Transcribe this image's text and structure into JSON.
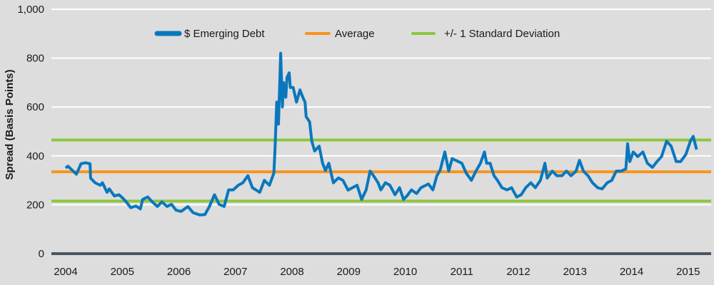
{
  "chart_data": {
    "type": "line",
    "title": "",
    "xlabel": "",
    "ylabel": "Spread (Basis Points)",
    "ylim": [
      0,
      1000
    ],
    "yticks": [
      0,
      200,
      400,
      600,
      800,
      1000
    ],
    "ytick_labels": [
      "0",
      "200",
      "400",
      "600",
      "800",
      "1,000"
    ],
    "xticks": [
      2004,
      2005,
      2006,
      2007,
      2008,
      2009,
      2010,
      2011,
      2012,
      2013,
      2014,
      2015
    ],
    "xtick_labels": [
      "2004",
      "2005",
      "2006",
      "2007",
      "2008",
      "2009",
      "2010",
      "2011",
      "2012",
      "2013",
      "2014",
      "2015"
    ],
    "xlim": [
      2003.75,
      2015.42
    ],
    "grid": true,
    "legend_position": "top-center",
    "series": [
      {
        "name": "$ Emerging Debt",
        "color": "#0a77bd",
        "points": [
          [
            2004.0,
            350
          ],
          [
            2004.04,
            358
          ],
          [
            2004.1,
            345
          ],
          [
            2004.19,
            325
          ],
          [
            2004.27,
            368
          ],
          [
            2004.35,
            372
          ],
          [
            2004.43,
            368
          ],
          [
            2004.44,
            309
          ],
          [
            2004.52,
            290
          ],
          [
            2004.61,
            280
          ],
          [
            2004.65,
            290
          ],
          [
            2004.73,
            251
          ],
          [
            2004.77,
            265
          ],
          [
            2004.86,
            236
          ],
          [
            2004.94,
            241
          ],
          [
            2005.01,
            227
          ],
          [
            2005.07,
            212
          ],
          [
            2005.15,
            188
          ],
          [
            2005.24,
            195
          ],
          [
            2005.32,
            183
          ],
          [
            2005.36,
            222
          ],
          [
            2005.45,
            232
          ],
          [
            2005.53,
            212
          ],
          [
            2005.62,
            193
          ],
          [
            2005.7,
            212
          ],
          [
            2005.79,
            193
          ],
          [
            2005.87,
            202
          ],
          [
            2005.95,
            178
          ],
          [
            2006.04,
            173
          ],
          [
            2006.16,
            193
          ],
          [
            2006.25,
            168
          ],
          [
            2006.37,
            158
          ],
          [
            2006.46,
            160
          ],
          [
            2006.54,
            193
          ],
          [
            2006.63,
            241
          ],
          [
            2006.71,
            202
          ],
          [
            2006.8,
            193
          ],
          [
            2006.88,
            261
          ],
          [
            2006.96,
            261
          ],
          [
            2007.05,
            280
          ],
          [
            2007.13,
            290
          ],
          [
            2007.22,
            319
          ],
          [
            2007.3,
            270
          ],
          [
            2007.43,
            251
          ],
          [
            2007.51,
            300
          ],
          [
            2007.6,
            280
          ],
          [
            2007.68,
            330
          ],
          [
            2007.7,
            430
          ],
          [
            2007.73,
            620
          ],
          [
            2007.76,
            530
          ],
          [
            2007.8,
            820
          ],
          [
            2007.83,
            600
          ],
          [
            2007.85,
            700
          ],
          [
            2007.89,
            640
          ],
          [
            2007.91,
            720
          ],
          [
            2007.95,
            740
          ],
          [
            2007.97,
            680
          ],
          [
            2008.02,
            680
          ],
          [
            2008.08,
            620
          ],
          [
            2008.14,
            670
          ],
          [
            2008.19,
            640
          ],
          [
            2008.23,
            620
          ],
          [
            2008.25,
            560
          ],
          [
            2008.31,
            540
          ],
          [
            2008.35,
            460
          ],
          [
            2008.4,
            420
          ],
          [
            2008.48,
            440
          ],
          [
            2008.54,
            370
          ],
          [
            2008.59,
            340
          ],
          [
            2008.65,
            370
          ],
          [
            2008.73,
            290
          ],
          [
            2008.82,
            310
          ],
          [
            2008.9,
            300
          ],
          [
            2008.99,
            260
          ],
          [
            2009.15,
            280
          ],
          [
            2009.23,
            222
          ],
          [
            2009.31,
            261
          ],
          [
            2009.38,
            338
          ],
          [
            2009.44,
            319
          ],
          [
            2009.52,
            290
          ],
          [
            2009.57,
            261
          ],
          [
            2009.65,
            290
          ],
          [
            2009.73,
            280
          ],
          [
            2009.82,
            241
          ],
          [
            2009.9,
            270
          ],
          [
            2009.97,
            222
          ],
          [
            2010.03,
            236
          ],
          [
            2010.11,
            261
          ],
          [
            2010.2,
            246
          ],
          [
            2010.28,
            270
          ],
          [
            2010.41,
            285
          ],
          [
            2010.49,
            261
          ],
          [
            2010.56,
            319
          ],
          [
            2010.62,
            343
          ],
          [
            2010.7,
            416
          ],
          [
            2010.77,
            338
          ],
          [
            2010.83,
            389
          ],
          [
            2010.91,
            380
          ],
          [
            2011.0,
            370
          ],
          [
            2011.08,
            329
          ],
          [
            2011.17,
            300
          ],
          [
            2011.25,
            338
          ],
          [
            2011.33,
            370
          ],
          [
            2011.4,
            416
          ],
          [
            2011.44,
            370
          ],
          [
            2011.5,
            370
          ],
          [
            2011.57,
            319
          ],
          [
            2011.63,
            300
          ],
          [
            2011.71,
            270
          ],
          [
            2011.8,
            261
          ],
          [
            2011.88,
            270
          ],
          [
            2011.97,
            232
          ],
          [
            2012.05,
            241
          ],
          [
            2012.13,
            270
          ],
          [
            2012.22,
            290
          ],
          [
            2012.3,
            270
          ],
          [
            2012.39,
            300
          ],
          [
            2012.47,
            370
          ],
          [
            2012.51,
            309
          ],
          [
            2012.6,
            338
          ],
          [
            2012.68,
            319
          ],
          [
            2012.77,
            319
          ],
          [
            2012.85,
            338
          ],
          [
            2012.93,
            319
          ],
          [
            2013.02,
            338
          ],
          [
            2013.08,
            382
          ],
          [
            2013.15,
            338
          ],
          [
            2013.23,
            319
          ],
          [
            2013.31,
            290
          ],
          [
            2013.4,
            270
          ],
          [
            2013.48,
            265
          ],
          [
            2013.57,
            290
          ],
          [
            2013.65,
            300
          ],
          [
            2013.73,
            338
          ],
          [
            2013.82,
            338
          ],
          [
            2013.9,
            347
          ],
          [
            2013.93,
            450
          ],
          [
            2013.97,
            377
          ],
          [
            2014.03,
            416
          ],
          [
            2014.11,
            397
          ],
          [
            2014.2,
            416
          ],
          [
            2014.28,
            370
          ],
          [
            2014.37,
            353
          ],
          [
            2014.45,
            377
          ],
          [
            2014.53,
            397
          ],
          [
            2014.62,
            460
          ],
          [
            2014.7,
            440
          ],
          [
            2014.79,
            377
          ],
          [
            2014.87,
            377
          ],
          [
            2014.96,
            406
          ],
          [
            2015.04,
            460
          ],
          [
            2015.09,
            480
          ],
          [
            2015.15,
            426
          ]
        ]
      },
      {
        "name": "Average",
        "color": "#f7941d",
        "value": 335
      },
      {
        "name": "+/- 1 Standard Deviation",
        "color": "#8dc63f",
        "values": [
          465,
          215
        ]
      }
    ],
    "zero_axis_color": "#4a5560",
    "gridline_color": "#ffffff"
  }
}
